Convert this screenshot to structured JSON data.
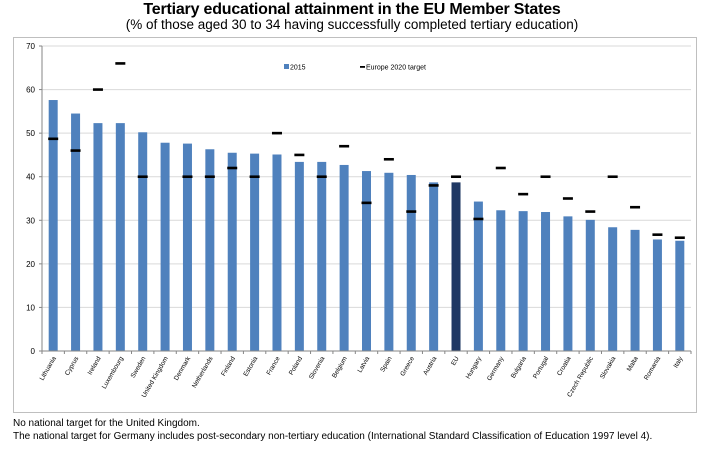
{
  "chart_data": {
    "type": "bar",
    "title": "Tertiary educational attainment in the EU Member States",
    "subtitle": "(% of those aged 30 to 34 having successfully completed tertiary education)",
    "xlabel": "",
    "ylabel": "",
    "ylim": [
      0,
      70
    ],
    "yticks": [
      0,
      10,
      20,
      30,
      40,
      50,
      60,
      70
    ],
    "grid": true,
    "legend_position": "top-center",
    "categories": [
      "Lithuania",
      "Cyprus",
      "Ireland",
      "Luxembourg",
      "Sweden",
      "United Kingdom",
      "Denmark",
      "Netherlands",
      "Finland",
      "Estonia",
      "France",
      "Poland",
      "Slovenia",
      "Belgium",
      "Latvia",
      "Spain",
      "Greece",
      "Austria",
      "EU",
      "Hungary",
      "Germany",
      "Bulgaria",
      "Portugal",
      "Croatia",
      "Czech Republic",
      "Slovakia",
      "Malta",
      "Romania",
      "Italy"
    ],
    "highlight_category": "EU",
    "series": [
      {
        "name": "2015",
        "kind": "bar",
        "color": "#4f81bd",
        "highlight_color": "#1f3864",
        "values": [
          57.6,
          54.5,
          52.3,
          52.3,
          50.2,
          47.8,
          47.6,
          46.3,
          45.5,
          45.3,
          45.1,
          43.4,
          43.4,
          42.7,
          41.3,
          40.9,
          40.4,
          38.7,
          38.7,
          34.3,
          32.3,
          32.1,
          31.9,
          30.9,
          30.1,
          28.4,
          27.8,
          25.6,
          25.3
        ]
      },
      {
        "name": "Europe 2020 target",
        "kind": "marker-dash",
        "color": "#000000",
        "values": [
          48.7,
          46,
          60,
          66,
          40,
          null,
          40,
          40,
          42,
          40,
          50,
          45,
          40,
          47,
          34,
          44,
          32,
          38,
          40,
          30.3,
          42,
          36,
          40,
          35,
          32,
          40,
          33,
          26.7,
          26
        ]
      }
    ]
  },
  "notes": [
    "No national target for the United Kingdom.",
    "The national target for Germany includes post-secondary non-tertiary education (International Standard Classification of Education 1997 level 4)."
  ]
}
